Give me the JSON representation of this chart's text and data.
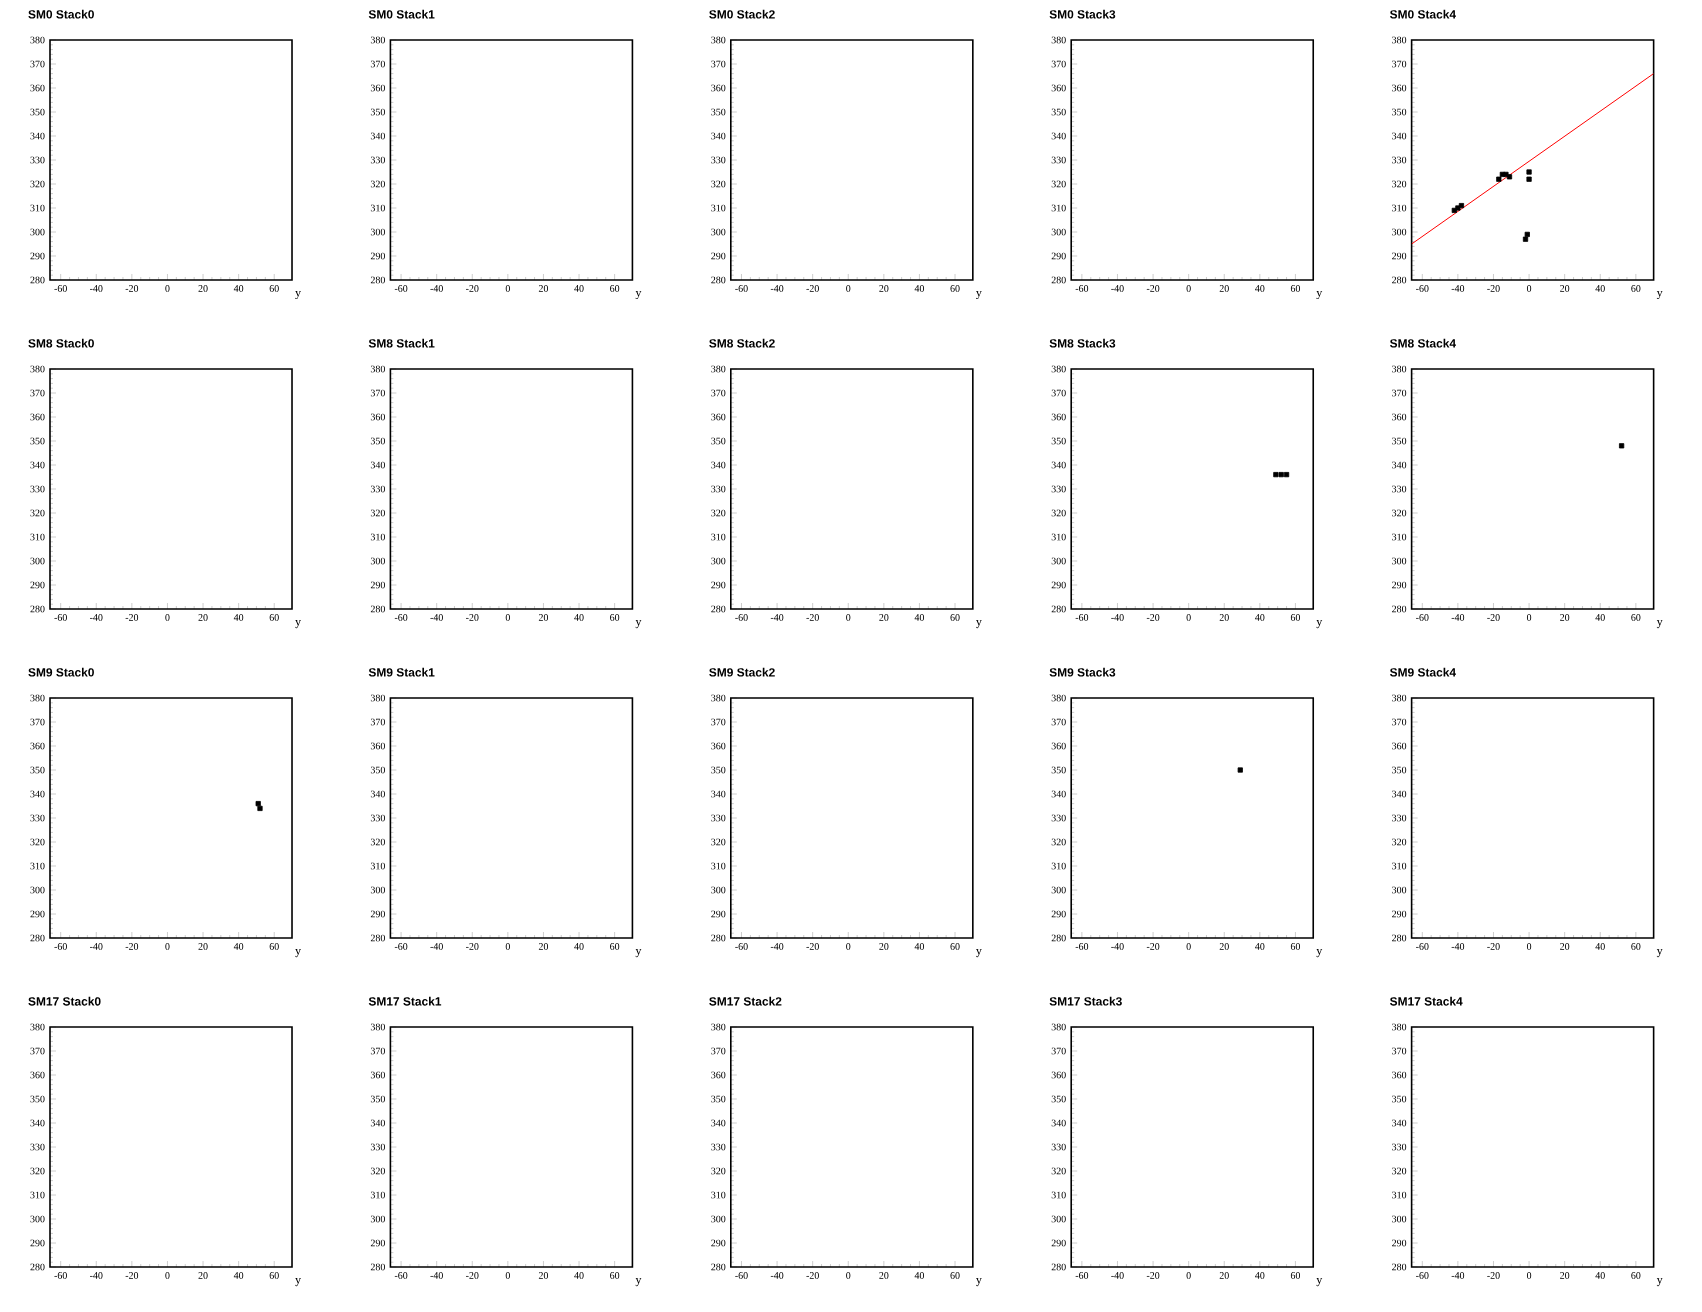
{
  "chart_data": [
    {
      "type": "scatter",
      "title": "SM0 Stack0",
      "xlabel": "y",
      "xlim": [
        -66,
        70
      ],
      "xticks": [
        -60,
        -40,
        -20,
        0,
        20,
        40,
        60
      ],
      "ylim": [
        280,
        380
      ],
      "yticks": [
        280,
        290,
        300,
        310,
        320,
        330,
        340,
        350,
        360,
        370,
        380
      ],
      "marker": "square"
    },
    {
      "type": "scatter",
      "title": "SM0 Stack1",
      "xlabel": "y",
      "xlim": [
        -66,
        70
      ],
      "xticks": [
        -60,
        -40,
        -20,
        0,
        20,
        40,
        60
      ],
      "ylim": [
        280,
        380
      ],
      "yticks": [
        280,
        290,
        300,
        310,
        320,
        330,
        340,
        350,
        360,
        370,
        380
      ],
      "marker": "square"
    },
    {
      "type": "scatter",
      "title": "SM0 Stack2",
      "xlabel": "y",
      "xlim": [
        -66,
        70
      ],
      "xticks": [
        -60,
        -40,
        -20,
        0,
        20,
        40,
        60
      ],
      "ylim": [
        280,
        380
      ],
      "yticks": [
        280,
        290,
        300,
        310,
        320,
        330,
        340,
        350,
        360,
        370,
        380
      ],
      "marker": "square"
    },
    {
      "type": "scatter",
      "title": "SM0 Stack3",
      "xlabel": "y",
      "xlim": [
        -66,
        70
      ],
      "xticks": [
        -60,
        -40,
        -20,
        0,
        20,
        40,
        60
      ],
      "ylim": [
        280,
        380
      ],
      "yticks": [
        280,
        290,
        300,
        310,
        320,
        330,
        340,
        350,
        360,
        370,
        380
      ],
      "marker": "square"
    },
    {
      "type": "scatter",
      "title": "SM0 Stack4",
      "xlabel": "y",
      "xlim": [
        -66,
        70
      ],
      "xticks": [
        -60,
        -40,
        -20,
        0,
        20,
        40,
        60
      ],
      "ylim": [
        280,
        380
      ],
      "yticks": [
        280,
        290,
        300,
        310,
        320,
        330,
        340,
        350,
        360,
        370,
        380
      ],
      "marker": "square",
      "series": [
        {
          "type": "line",
          "color": "#ff0000",
          "marker": "none",
          "x": [
            -66,
            70
          ],
          "values": [
            295,
            366
          ]
        },
        {
          "color": "#000000",
          "x": [
            -42,
            -40,
            -38,
            -17,
            -15,
            -13,
            -11,
            0,
            0,
            -2,
            -1
          ],
          "values": [
            309,
            310,
            311,
            322,
            324,
            324,
            323,
            322,
            325,
            297,
            299
          ]
        }
      ]
    },
    {
      "type": "scatter",
      "title": "SM8 Stack0",
      "xlabel": "y",
      "xlim": [
        -66,
        70
      ],
      "xticks": [
        -60,
        -40,
        -20,
        0,
        20,
        40,
        60
      ],
      "ylim": [
        280,
        380
      ],
      "yticks": [
        280,
        290,
        300,
        310,
        320,
        330,
        340,
        350,
        360,
        370,
        380
      ],
      "marker": "square"
    },
    {
      "type": "scatter",
      "title": "SM8 Stack1",
      "xlabel": "y",
      "xlim": [
        -66,
        70
      ],
      "xticks": [
        -60,
        -40,
        -20,
        0,
        20,
        40,
        60
      ],
      "ylim": [
        280,
        380
      ],
      "yticks": [
        280,
        290,
        300,
        310,
        320,
        330,
        340,
        350,
        360,
        370,
        380
      ],
      "marker": "square"
    },
    {
      "type": "scatter",
      "title": "SM8 Stack2",
      "xlabel": "y",
      "xlim": [
        -66,
        70
      ],
      "xticks": [
        -60,
        -40,
        -20,
        0,
        20,
        40,
        60
      ],
      "ylim": [
        280,
        380
      ],
      "yticks": [
        280,
        290,
        300,
        310,
        320,
        330,
        340,
        350,
        360,
        370,
        380
      ],
      "marker": "square"
    },
    {
      "type": "scatter",
      "title": "SM8 Stack3",
      "xlabel": "y",
      "xlim": [
        -66,
        70
      ],
      "xticks": [
        -60,
        -40,
        -20,
        0,
        20,
        40,
        60
      ],
      "ylim": [
        280,
        380
      ],
      "yticks": [
        280,
        290,
        300,
        310,
        320,
        330,
        340,
        350,
        360,
        370,
        380
      ],
      "marker": "square",
      "series": [
        {
          "color": "#000000",
          "x": [
            49,
            52,
            55
          ],
          "values": [
            336,
            336,
            336
          ]
        }
      ]
    },
    {
      "type": "scatter",
      "title": "SM8 Stack4",
      "xlabel": "y",
      "xlim": [
        -66,
        70
      ],
      "xticks": [
        -60,
        -40,
        -20,
        0,
        20,
        40,
        60
      ],
      "ylim": [
        280,
        380
      ],
      "yticks": [
        280,
        290,
        300,
        310,
        320,
        330,
        340,
        350,
        360,
        370,
        380
      ],
      "marker": "square",
      "series": [
        {
          "color": "#000000",
          "x": [
            52
          ],
          "values": [
            348
          ]
        }
      ]
    },
    {
      "type": "scatter",
      "title": "SM9 Stack0",
      "xlabel": "y",
      "xlim": [
        -66,
        70
      ],
      "xticks": [
        -60,
        -40,
        -20,
        0,
        20,
        40,
        60
      ],
      "ylim": [
        280,
        380
      ],
      "yticks": [
        280,
        290,
        300,
        310,
        320,
        330,
        340,
        350,
        360,
        370,
        380
      ],
      "marker": "square",
      "series": [
        {
          "color": "#000000",
          "x": [
            51,
            52
          ],
          "values": [
            336,
            334
          ]
        }
      ]
    },
    {
      "type": "scatter",
      "title": "SM9 Stack1",
      "xlabel": "y",
      "xlim": [
        -66,
        70
      ],
      "xticks": [
        -60,
        -40,
        -20,
        0,
        20,
        40,
        60
      ],
      "ylim": [
        280,
        380
      ],
      "yticks": [
        280,
        290,
        300,
        310,
        320,
        330,
        340,
        350,
        360,
        370,
        380
      ],
      "marker": "square"
    },
    {
      "type": "scatter",
      "title": "SM9 Stack2",
      "xlabel": "y",
      "xlim": [
        -66,
        70
      ],
      "xticks": [
        -60,
        -40,
        -20,
        0,
        20,
        40,
        60
      ],
      "ylim": [
        280,
        380
      ],
      "yticks": [
        280,
        290,
        300,
        310,
        320,
        330,
        340,
        350,
        360,
        370,
        380
      ],
      "marker": "square"
    },
    {
      "type": "scatter",
      "title": "SM9 Stack3",
      "xlabel": "y",
      "xlim": [
        -66,
        70
      ],
      "xticks": [
        -60,
        -40,
        -20,
        0,
        20,
        40,
        60
      ],
      "ylim": [
        280,
        380
      ],
      "yticks": [
        280,
        290,
        300,
        310,
        320,
        330,
        340,
        350,
        360,
        370,
        380
      ],
      "marker": "square",
      "series": [
        {
          "color": "#000000",
          "x": [
            29
          ],
          "values": [
            350
          ]
        }
      ]
    },
    {
      "type": "scatter",
      "title": "SM9 Stack4",
      "xlabel": "y",
      "xlim": [
        -66,
        70
      ],
      "xticks": [
        -60,
        -40,
        -20,
        0,
        20,
        40,
        60
      ],
      "ylim": [
        280,
        380
      ],
      "yticks": [
        280,
        290,
        300,
        310,
        320,
        330,
        340,
        350,
        360,
        370,
        380
      ],
      "marker": "square"
    },
    {
      "type": "scatter",
      "title": "SM17 Stack0",
      "xlabel": "y",
      "xlim": [
        -66,
        70
      ],
      "xticks": [
        -60,
        -40,
        -20,
        0,
        20,
        40,
        60
      ],
      "ylim": [
        280,
        380
      ],
      "yticks": [
        280,
        290,
        300,
        310,
        320,
        330,
        340,
        350,
        360,
        370,
        380
      ],
      "marker": "square"
    },
    {
      "type": "scatter",
      "title": "SM17 Stack1",
      "xlabel": "y",
      "xlim": [
        -66,
        70
      ],
      "xticks": [
        -60,
        -40,
        -20,
        0,
        20,
        40,
        60
      ],
      "ylim": [
        280,
        380
      ],
      "yticks": [
        280,
        290,
        300,
        310,
        320,
        330,
        340,
        350,
        360,
        370,
        380
      ],
      "marker": "square"
    },
    {
      "type": "scatter",
      "title": "SM17 Stack2",
      "xlabel": "y",
      "xlim": [
        -66,
        70
      ],
      "xticks": [
        -60,
        -40,
        -20,
        0,
        20,
        40,
        60
      ],
      "ylim": [
        280,
        380
      ],
      "yticks": [
        280,
        290,
        300,
        310,
        320,
        330,
        340,
        350,
        360,
        370,
        380
      ],
      "marker": "square"
    },
    {
      "type": "scatter",
      "title": "SM17 Stack3",
      "xlabel": "y",
      "xlim": [
        -66,
        70
      ],
      "xticks": [
        -60,
        -40,
        -20,
        0,
        20,
        40,
        60
      ],
      "ylim": [
        280,
        380
      ],
      "yticks": [
        280,
        290,
        300,
        310,
        320,
        330,
        340,
        350,
        360,
        370,
        380
      ],
      "marker": "square"
    },
    {
      "type": "scatter",
      "title": "SM17 Stack4",
      "xlabel": "y",
      "xlim": [
        -66,
        70
      ],
      "xticks": [
        -60,
        -40,
        -20,
        0,
        20,
        40,
        60
      ],
      "ylim": [
        280,
        380
      ],
      "yticks": [
        280,
        290,
        300,
        310,
        320,
        330,
        340,
        350,
        360,
        370,
        380
      ],
      "marker": "square"
    }
  ]
}
